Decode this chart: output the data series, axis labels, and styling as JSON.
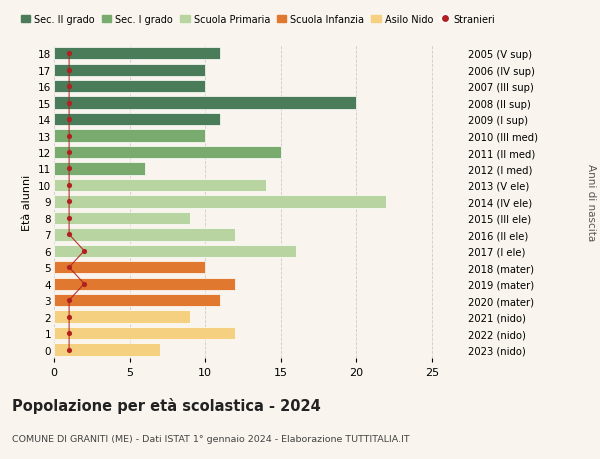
{
  "ages": [
    18,
    17,
    16,
    15,
    14,
    13,
    12,
    11,
    10,
    9,
    8,
    7,
    6,
    5,
    4,
    3,
    2,
    1,
    0
  ],
  "right_labels": [
    "2005 (V sup)",
    "2006 (IV sup)",
    "2007 (III sup)",
    "2008 (II sup)",
    "2009 (I sup)",
    "2010 (III med)",
    "2011 (II med)",
    "2012 (I med)",
    "2013 (V ele)",
    "2014 (IV ele)",
    "2015 (III ele)",
    "2016 (II ele)",
    "2017 (I ele)",
    "2018 (mater)",
    "2019 (mater)",
    "2020 (mater)",
    "2021 (nido)",
    "2022 (nido)",
    "2023 (nido)"
  ],
  "values": [
    11,
    10,
    10,
    20,
    11,
    10,
    15,
    6,
    14,
    22,
    9,
    12,
    16,
    10,
    12,
    11,
    9,
    12,
    7
  ],
  "stranieri": [
    1,
    1,
    1,
    1,
    1,
    1,
    1,
    1,
    1,
    1,
    1,
    1,
    2,
    1,
    2,
    1,
    1,
    1,
    1
  ],
  "colors": {
    "sec2": "#4a7c59",
    "sec1": "#7aab6e",
    "primaria": "#b8d4a0",
    "infanzia": "#e07830",
    "nido": "#f5d080",
    "stranieri": "#b22020"
  },
  "bar_colors": [
    "#4a7c59",
    "#4a7c59",
    "#4a7c59",
    "#4a7c59",
    "#4a7c59",
    "#7aab6e",
    "#7aab6e",
    "#7aab6e",
    "#b8d4a0",
    "#b8d4a0",
    "#b8d4a0",
    "#b8d4a0",
    "#b8d4a0",
    "#e07830",
    "#e07830",
    "#e07830",
    "#f5d080",
    "#f5d080",
    "#f5d080"
  ],
  "legend_labels": [
    "Sec. II grado",
    "Sec. I grado",
    "Scuola Primaria",
    "Scuola Infanzia",
    "Asilo Nido",
    "Stranieri"
  ],
  "legend_colors": [
    "#4a7c59",
    "#7aab6e",
    "#b8d4a0",
    "#e07830",
    "#f5d080",
    "#b22020"
  ],
  "title": "Popolazione per età scolastica - 2024",
  "subtitle": "COMUNE DI GRANITI (ME) - Dati ISTAT 1° gennaio 2024 - Elaborazione TUTTITALIA.IT",
  "ylabel_left": "Età alunni",
  "ylabel_right": "Anni di nascita",
  "xlim": [
    0,
    27
  ],
  "ylim": [
    -0.5,
    18.5
  ],
  "background_color": "#f9f5ee",
  "grid_color": "#cccccc"
}
